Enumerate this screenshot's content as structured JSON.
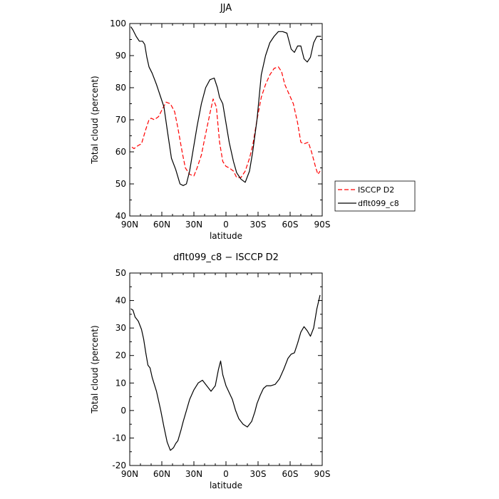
{
  "chart_data": [
    {
      "type": "line",
      "title": "JJA",
      "xlabel": "latitude",
      "ylabel": "Total cloud (percent)",
      "xlim": [
        -90,
        90
      ],
      "ylim": [
        40,
        100
      ],
      "x_ticks": [
        {
          "value": -90,
          "label": "90N"
        },
        {
          "value": -60,
          "label": "60N"
        },
        {
          "value": -30,
          "label": "30N"
        },
        {
          "value": 0,
          "label": "0"
        },
        {
          "value": 30,
          "label": "30S"
        },
        {
          "value": 60,
          "label": "60S"
        },
        {
          "value": 90,
          "label": "90S"
        }
      ],
      "y_ticks": [
        40,
        50,
        60,
        70,
        80,
        90,
        100
      ],
      "legend": "right",
      "series": [
        {
          "name": "ISCCP D2",
          "color": "#ff0000",
          "dash": "dashed",
          "x": [
            -88,
            -86,
            -82,
            -79,
            -75,
            -72,
            -70,
            -67,
            -63,
            -60,
            -56,
            -52,
            -48,
            -45,
            -41,
            -38,
            -34,
            -30,
            -27,
            -23,
            -20,
            -15,
            -12,
            -9,
            -6,
            -3,
            0,
            3,
            7,
            10,
            14,
            18,
            22,
            25,
            29,
            33,
            37,
            41,
            45,
            49,
            52,
            55,
            59,
            63,
            67,
            70,
            73,
            77,
            80,
            84,
            86,
            88
          ],
          "y": [
            61.5,
            61,
            62,
            62.5,
            67,
            70,
            70.5,
            70,
            71,
            73,
            75.5,
            75,
            72.5,
            67.5,
            60,
            55,
            53,
            52.5,
            55,
            59,
            64,
            72,
            76.5,
            74,
            63,
            57,
            55.5,
            55,
            54,
            52,
            52,
            54,
            58,
            62,
            70,
            77,
            81,
            84,
            86,
            86.5,
            85,
            81,
            78,
            75,
            69,
            63,
            62.5,
            63,
            60,
            55,
            53,
            54
          ]
        },
        {
          "name": "dflt099_c8",
          "color": "#000000",
          "dash": "solid",
          "x": [
            -89,
            -87,
            -84,
            -81,
            -78,
            -76,
            -74,
            -72,
            -69,
            -65,
            -62,
            -58,
            -55,
            -51,
            -47,
            -43,
            -40,
            -37,
            -34,
            -31,
            -27,
            -23,
            -19,
            -15,
            -11,
            -8,
            -6,
            -3,
            0,
            3,
            7,
            10,
            14,
            18,
            22,
            25,
            29,
            33,
            37,
            41,
            45,
            49,
            53,
            57,
            61,
            64,
            67,
            70,
            73,
            76,
            79,
            82,
            85,
            88,
            89
          ],
          "y": [
            99,
            98,
            96,
            94.5,
            94.5,
            93.5,
            89.5,
            86.5,
            84.5,
            81,
            78,
            74,
            67,
            58,
            54.5,
            50,
            49.5,
            50,
            54,
            60,
            68,
            75,
            80,
            82.5,
            83,
            80,
            77,
            75,
            69,
            63,
            57,
            53.5,
            51.5,
            50.5,
            54,
            60,
            70,
            84,
            90,
            94,
            96,
            97.5,
            97.5,
            97,
            92,
            91,
            93,
            93,
            89,
            88,
            89.5,
            94,
            96,
            96,
            96
          ]
        }
      ]
    },
    {
      "type": "line",
      "title": "dflt099_c8 − ISCCP D2",
      "xlabel": "latitude",
      "ylabel": "Total cloud (percent)",
      "xlim": [
        -90,
        90
      ],
      "ylim": [
        -20,
        50
      ],
      "x_ticks": [
        {
          "value": -90,
          "label": "90N"
        },
        {
          "value": -60,
          "label": "60N"
        },
        {
          "value": -30,
          "label": "30N"
        },
        {
          "value": 0,
          "label": "0"
        },
        {
          "value": 30,
          "label": "30S"
        },
        {
          "value": 60,
          "label": "60S"
        },
        {
          "value": 90,
          "label": "90S"
        }
      ],
      "y_ticks": [
        -20,
        -10,
        0,
        10,
        20,
        30,
        40,
        50
      ],
      "series": [
        {
          "color": "#000000",
          "dash": "solid",
          "x": [
            -89,
            -87,
            -85,
            -82,
            -79,
            -77,
            -75,
            -73,
            -71,
            -69,
            -65,
            -61,
            -58,
            -55,
            -52,
            -49,
            -47,
            -45,
            -42,
            -40,
            -37,
            -34,
            -30,
            -26,
            -22,
            -18,
            -14,
            -10,
            -7,
            -5,
            -3,
            0,
            3,
            6,
            9,
            12,
            16,
            20,
            24,
            27,
            29,
            32,
            35,
            38,
            42,
            46,
            50,
            54,
            58,
            61,
            64,
            67,
            70,
            73,
            76,
            79,
            82,
            85,
            88
          ],
          "y": [
            37,
            36.5,
            34,
            32.5,
            29.5,
            26,
            21,
            16.5,
            15.5,
            12,
            7,
            0,
            -6,
            -11.5,
            -14.5,
            -13.5,
            -12,
            -11,
            -7,
            -4,
            0,
            4,
            7.5,
            10,
            11,
            9,
            7,
            9,
            15,
            18,
            13,
            9,
            6.5,
            4,
            0,
            -3,
            -5,
            -6,
            -4,
            -0.5,
            2.5,
            5.5,
            8,
            9,
            9,
            9.5,
            11.5,
            15,
            19,
            20.5,
            21,
            24.5,
            28.5,
            30.5,
            29,
            27,
            30,
            37,
            42
          ]
        }
      ]
    }
  ]
}
